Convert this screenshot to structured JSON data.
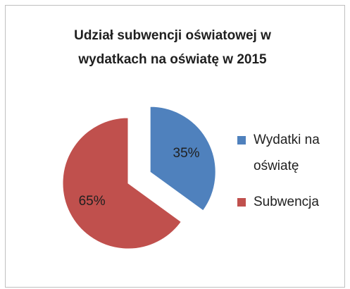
{
  "chart_data": {
    "type": "pie",
    "title": "Udział subwencji oświatowej w wydatkach na oświatę w 2015",
    "categories": [
      "Wydatki na oświatę",
      "Subwencja"
    ],
    "values": [
      35,
      65
    ],
    "value_labels": [
      "35%",
      "65%"
    ],
    "colors": [
      "#4f81bd",
      "#c0504d"
    ],
    "exploded": [
      true,
      false
    ],
    "legend": "right"
  }
}
